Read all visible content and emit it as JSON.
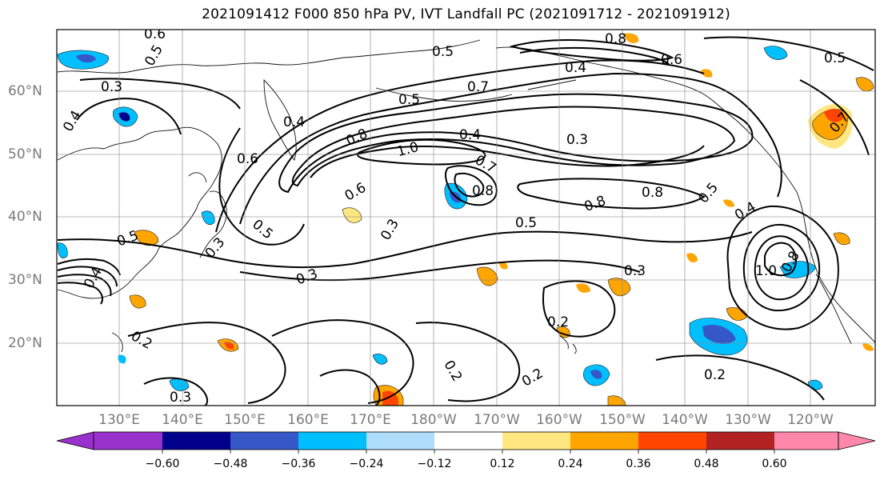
{
  "title": "2021091412 F000 850 hPa PV, IVT Landfall PC (2021091712 - 2021091912)",
  "latitude_labels": [
    "60°N",
    "50°N",
    "40°N",
    "30°N",
    "20°N"
  ],
  "longitude_labels": [
    "130°E",
    "140°E",
    "150°E",
    "160°E",
    "170°E",
    "180°W",
    "170°W",
    "160°W",
    "150°W",
    "140°W",
    "130°W",
    "120°W"
  ],
  "contour_labels": [
    "0.6",
    "0.5",
    "0.3",
    "0.4",
    "0.4",
    "0.5",
    "0.7",
    "0.5",
    "0.4",
    "0.8",
    "1.0",
    "0.7",
    "0.8",
    "0.6",
    "0.3",
    "0.5",
    "0.5",
    "0.3",
    "0.4",
    "0.8",
    "0.8",
    "0.5",
    "0.3",
    "0.2",
    "0.2",
    "0.2",
    "0.2",
    "0.3",
    "1.0",
    "0.8",
    "0.6",
    "0.5",
    "0.4",
    "0.6",
    "0.7",
    "0.3",
    "0.2",
    "0.3",
    "0.5",
    "0.4",
    "0.8"
  ],
  "colorbar": {
    "ticks": [
      "−0.60",
      "−0.48",
      "−0.36",
      "−0.24",
      "−0.12",
      "0.12",
      "0.24",
      "0.36",
      "0.48",
      "0.60"
    ],
    "colors": [
      "#9932CC",
      "#00008B",
      "#3557C8",
      "#00BFFF",
      "#ADDDFB",
      "#FFFFFF",
      "#FFE680",
      "#FFA500",
      "#FF4500",
      "#B22222",
      "#FF88AA"
    ]
  }
}
